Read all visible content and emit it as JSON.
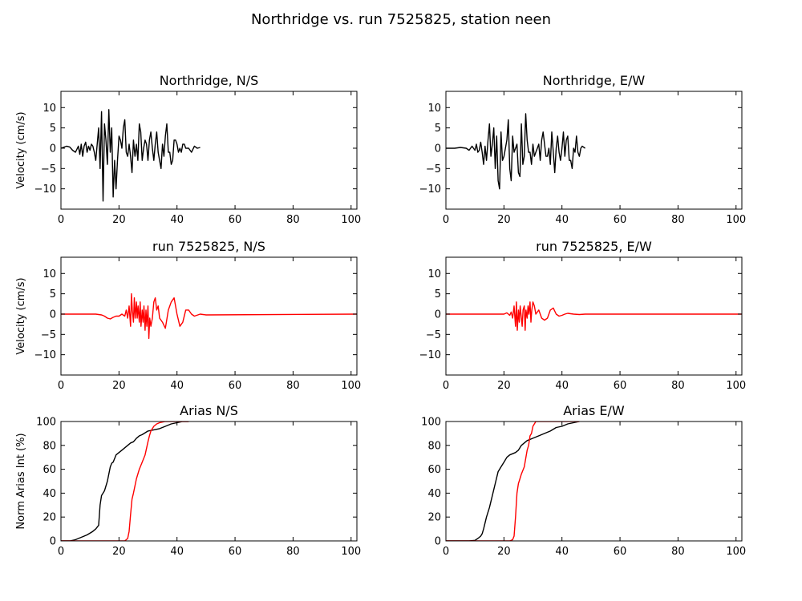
{
  "figure": {
    "title": "Northridge vs. run 7525825, station neen"
  },
  "colors": {
    "recorded": "#000000",
    "simulated": "#ff0000"
  },
  "chart_data": [
    {
      "type": "line",
      "title": "Northridge, N/S",
      "ylabel": "Velocity (cm/s)",
      "xlim": [
        0,
        102
      ],
      "ylim": [
        -15,
        14
      ],
      "xticks": [
        0,
        20,
        40,
        60,
        80,
        100
      ],
      "yticks": [
        -10,
        -5,
        0,
        5,
        10
      ],
      "series": [
        {
          "color": "#000000",
          "x": [
            0,
            2,
            3,
            4,
            5,
            6,
            6.5,
            7,
            7.5,
            8,
            8.5,
            9,
            9.5,
            10,
            10.5,
            11,
            11.5,
            12,
            12.5,
            13,
            13.5,
            14,
            14.5,
            15,
            15.5,
            16,
            16.5,
            17,
            17.5,
            18,
            18.5,
            19,
            19.5,
            20,
            20.5,
            21,
            21.5,
            22,
            22.5,
            23,
            23.5,
            24,
            24.5,
            25,
            25.5,
            26,
            26.5,
            27,
            27.5,
            28,
            28.5,
            29,
            29.5,
            30,
            30.5,
            31,
            31.5,
            32,
            32.5,
            33,
            33.5,
            34,
            34.5,
            35,
            35.5,
            36,
            36.5,
            37,
            37.5,
            38,
            38.5,
            39,
            39.5,
            40,
            40.5,
            41,
            41.5,
            42,
            42.5,
            43,
            44,
            45,
            46,
            47,
            48
          ],
          "y": [
            0,
            0.5,
            0.3,
            -0.5,
            -1,
            0.5,
            -1.5,
            1,
            -2,
            0.5,
            1.5,
            -1,
            0.5,
            -0.5,
            1,
            0.5,
            -1,
            -3,
            1,
            5,
            -5,
            9,
            -13,
            6,
            2,
            -4,
            9.5,
            -1,
            5,
            -12,
            -3,
            -10,
            -3,
            3,
            2,
            0,
            5,
            7,
            -1,
            -2,
            1,
            -2,
            -6,
            2,
            -2,
            1,
            -3,
            6,
            4,
            -3,
            0,
            2,
            1,
            -3,
            2,
            4,
            0,
            -3,
            1,
            4,
            -1,
            -3,
            -5,
            1,
            -2,
            3,
            6,
            -1,
            -1,
            -4,
            -3,
            2,
            2,
            1,
            -1,
            0,
            -1,
            1,
            1,
            0,
            0,
            -1,
            0.5,
            0,
            0.2
          ]
        }
      ]
    },
    {
      "type": "line",
      "title": "Northridge, E/W",
      "ylabel": "",
      "xlim": [
        0,
        102
      ],
      "ylim": [
        -15,
        14
      ],
      "xticks": [
        0,
        20,
        40,
        60,
        80,
        100
      ],
      "yticks": [
        -10,
        -5,
        0,
        5,
        10
      ],
      "series": [
        {
          "color": "#000000",
          "x": [
            0,
            3,
            5,
            7,
            8,
            9,
            9.5,
            10,
            10.5,
            11,
            11.5,
            12,
            12.5,
            13,
            13.5,
            14,
            14.5,
            15,
            15.5,
            16,
            16.5,
            17,
            17.5,
            18,
            18.5,
            19,
            19.5,
            20,
            20.5,
            21,
            21.5,
            22,
            22.5,
            23,
            23.5,
            24,
            24.5,
            25,
            25.5,
            26,
            26.5,
            27,
            27.5,
            28,
            28.5,
            29,
            29.5,
            30,
            30.5,
            31,
            31.5,
            32,
            32.5,
            33,
            33.5,
            34,
            34.5,
            35,
            35.5,
            36,
            36.5,
            37,
            37.5,
            38,
            38.5,
            39,
            39.5,
            40,
            40.5,
            41,
            41.5,
            42,
            42.5,
            43,
            43.5,
            44,
            44.5,
            45,
            45.5,
            46,
            46.5,
            47,
            48
          ],
          "y": [
            0,
            0,
            0.2,
            0,
            -0.5,
            0.5,
            0,
            -0.5,
            1,
            -1,
            -0.5,
            1.5,
            -1,
            -4,
            0.5,
            -3,
            2,
            6,
            -2,
            1,
            5,
            -5,
            3,
            -8,
            -10,
            4,
            -3,
            -2,
            0,
            2,
            7,
            -5,
            -8,
            3,
            -1,
            0,
            1,
            -6,
            -7,
            6,
            -4,
            -2,
            8.5,
            2,
            -1,
            -1,
            -4,
            1,
            -2,
            -1,
            0,
            1,
            -3,
            2,
            4,
            1,
            -2,
            -2,
            0,
            -4,
            4,
            -1,
            -6,
            0,
            3,
            -1,
            -3,
            0,
            4,
            -2,
            2,
            3,
            -3,
            -3,
            -5,
            0,
            -1,
            3,
            -1,
            -2,
            0,
            0.5,
            0
          ]
        }
      ]
    },
    {
      "type": "line",
      "title": "run 7525825, N/S",
      "ylabel": "Velocity (cm/s)",
      "xlim": [
        0,
        102
      ],
      "ylim": [
        -15,
        14
      ],
      "xticks": [
        0,
        20,
        40,
        60,
        80,
        100
      ],
      "yticks": [
        -10,
        -5,
        0,
        5,
        10
      ],
      "series": [
        {
          "color": "#ff0000",
          "x": [
            0,
            12,
            14,
            15,
            16,
            17,
            18,
            19,
            20,
            21,
            22,
            22.5,
            23,
            23.5,
            24,
            24.3,
            24.6,
            25,
            25.3,
            25.6,
            26,
            26.3,
            26.6,
            27,
            27.3,
            27.6,
            28,
            28.3,
            28.6,
            29,
            29.3,
            29.6,
            30,
            30.3,
            30.6,
            31,
            31.5,
            32,
            32.5,
            33,
            33.5,
            34,
            35,
            36,
            37,
            38,
            39,
            40,
            41,
            42,
            43,
            44,
            45,
            46,
            48,
            50,
            102
          ],
          "y": [
            0,
            0,
            -0.2,
            -0.5,
            -1,
            -1.2,
            -0.8,
            -0.5,
            -0.5,
            0,
            -0.5,
            1,
            -1,
            2,
            -3,
            5,
            1,
            -2,
            4,
            -1,
            3,
            -1,
            2,
            -2,
            3,
            -3,
            1,
            -2,
            2,
            -4,
            1,
            -3,
            2,
            -6,
            -1,
            -3,
            -1,
            3,
            4,
            1,
            2,
            -1,
            -2,
            -3.5,
            1,
            3,
            4,
            0,
            -3,
            -2,
            1,
            1,
            0,
            -0.5,
            0,
            -0.2,
            0
          ]
        }
      ]
    },
    {
      "type": "line",
      "title": "run 7525825, E/W",
      "ylabel": "",
      "xlim": [
        0,
        102
      ],
      "ylim": [
        -15,
        14
      ],
      "xticks": [
        0,
        20,
        40,
        60,
        80,
        100
      ],
      "yticks": [
        -10,
        -5,
        0,
        5,
        10
      ],
      "series": [
        {
          "color": "#ff0000",
          "x": [
            0,
            15,
            18,
            20,
            21,
            22,
            22.5,
            23,
            23.5,
            24,
            24.3,
            24.6,
            25,
            25.3,
            25.6,
            26,
            26.3,
            26.6,
            27,
            27.3,
            27.6,
            28,
            28.3,
            28.6,
            29,
            29.3,
            29.6,
            30,
            30.5,
            31,
            32,
            33,
            34,
            35,
            36,
            37,
            38,
            39,
            40,
            41,
            42,
            44,
            46,
            48,
            102
          ],
          "y": [
            0,
            0,
            0,
            0,
            0.3,
            -0.3,
            0.5,
            -1,
            2,
            -3,
            3,
            -4,
            1,
            -2,
            2,
            -1,
            -3,
            1,
            2,
            -4,
            1,
            -1,
            2,
            0,
            3,
            -2,
            1,
            3,
            2,
            0,
            1,
            -1,
            -1.5,
            -1,
            1,
            1.5,
            0,
            -0.5,
            -0.3,
            0,
            0.2,
            0,
            -0.1,
            0,
            0
          ]
        }
      ]
    },
    {
      "type": "line",
      "title": "Arias N/S",
      "ylabel": "Norm Arias Int (%)",
      "xlim": [
        0,
        102
      ],
      "ylim": [
        0,
        100
      ],
      "xticks": [
        0,
        20,
        40,
        60,
        80,
        100
      ],
      "yticks": [
        0,
        20,
        40,
        60,
        80,
        100
      ],
      "series": [
        {
          "color": "#000000",
          "x": [
            0,
            3,
            5,
            7,
            9,
            11,
            12,
            13,
            13.5,
            14,
            14.5,
            15,
            16,
            17,
            17.5,
            18,
            19,
            20,
            21,
            22,
            23,
            24,
            25,
            26,
            27,
            28,
            30,
            32,
            34,
            36,
            38,
            40,
            42,
            44
          ],
          "y": [
            0,
            0,
            1,
            3,
            5,
            8,
            10,
            13,
            30,
            38,
            40,
            42,
            50,
            62,
            65,
            66,
            72,
            74,
            76,
            78,
            80,
            82,
            83,
            86,
            88,
            89,
            92,
            93,
            94,
            96,
            98,
            99,
            100,
            100
          ]
        },
        {
          "color": "#ff0000",
          "x": [
            0,
            22,
            23,
            23.5,
            24,
            24.5,
            25,
            26,
            27,
            28,
            29,
            30,
            30.5,
            31,
            32,
            33,
            34,
            36,
            38,
            40,
            42,
            44
          ],
          "y": [
            0,
            0,
            2,
            8,
            22,
            35,
            40,
            52,
            60,
            66,
            72,
            83,
            88,
            92,
            96,
            98,
            99,
            100,
            100,
            100,
            100,
            100
          ]
        }
      ]
    },
    {
      "type": "line",
      "title": "Arias E/W",
      "ylabel": "",
      "xlim": [
        0,
        102
      ],
      "ylim": [
        0,
        100
      ],
      "xticks": [
        0,
        20,
        40,
        60,
        80,
        100
      ],
      "yticks": [
        0,
        20,
        40,
        60,
        80,
        100
      ],
      "series": [
        {
          "color": "#000000",
          "x": [
            0,
            8,
            10,
            11,
            12,
            12.5,
            13,
            14,
            15,
            16,
            17,
            18,
            19,
            20,
            21,
            22,
            23,
            24,
            25,
            26,
            27,
            28,
            30,
            32,
            34,
            36,
            38,
            40,
            42,
            44,
            46
          ],
          "y": [
            0,
            0,
            0.5,
            2,
            4,
            6,
            10,
            20,
            28,
            38,
            48,
            58,
            62,
            66,
            70,
            72,
            73,
            74,
            76,
            80,
            82,
            84,
            86,
            88,
            90,
            92,
            95,
            96,
            98,
            99,
            100
          ]
        },
        {
          "color": "#ff0000",
          "x": [
            0,
            22,
            23,
            23.5,
            24,
            24.5,
            25,
            25.5,
            26,
            27,
            28,
            28.5,
            29,
            29.5,
            30,
            30.5,
            31,
            32,
            34,
            40,
            46
          ],
          "y": [
            0,
            0,
            1,
            4,
            20,
            40,
            48,
            52,
            56,
            62,
            76,
            80,
            88,
            90,
            96,
            98,
            100,
            100,
            100,
            100,
            100
          ]
        }
      ]
    }
  ]
}
